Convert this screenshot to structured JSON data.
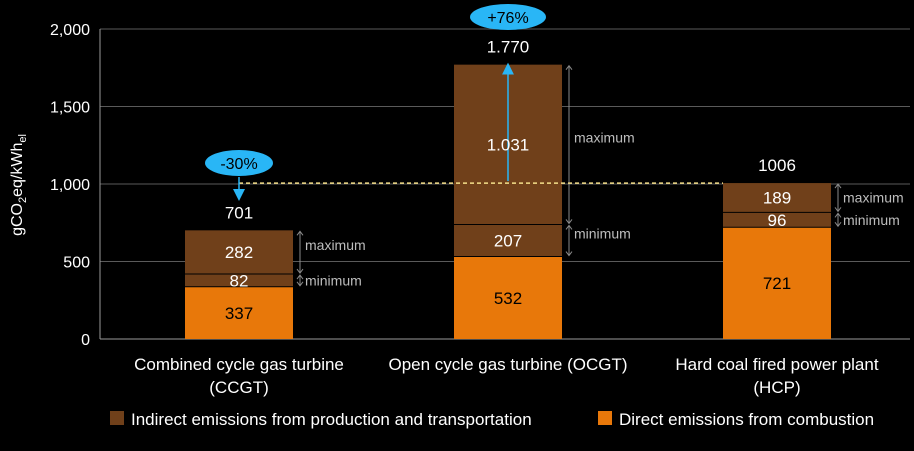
{
  "chart_data": {
    "type": "bar",
    "stacked": true,
    "ylabel_main": "gCO",
    "ylabel_sub": "2",
    "ylabel_mid": "eq/kWh",
    "ylabel_sub2": "el",
    "ylim": [
      0,
      2000
    ],
    "yticks": [
      "0",
      "500",
      "1,000",
      "1,500",
      "2,000"
    ],
    "ytick_values": [
      0,
      500,
      1000,
      1500,
      2000
    ],
    "categories": [
      [
        "Combined cycle gas turbine",
        "(CCGT)"
      ],
      [
        "Open cycle gas turbine (OCGT)",
        ""
      ],
      [
        "Hard coal fired power plant",
        "(HCP)"
      ]
    ],
    "series": [
      {
        "name": "Direct emissions from combustion",
        "color": "#e8780a",
        "values": [
          337,
          532,
          721
        ],
        "labels": [
          "337",
          "532",
          "721"
        ]
      },
      {
        "name": "Indirect emissions from production and transportation",
        "color": "#70401a",
        "values_min": [
          82,
          207,
          96
        ],
        "labels_min": [
          "82",
          "207",
          "96"
        ],
        "values_max": [
          282,
          1031,
          189
        ],
        "labels_max": [
          "282",
          "1.031",
          "189"
        ]
      }
    ],
    "totals": [
      701,
      1770,
      1006
    ],
    "total_labels": [
      "701",
      "1.770",
      "1006"
    ],
    "range_labels": {
      "max": "maximum",
      "min": "minimum"
    },
    "reference_line_value": 1006,
    "annotations": [
      {
        "text": "-30%",
        "category": 0,
        "color": "#29b6f6"
      },
      {
        "text": "+76%",
        "category": 1,
        "color": "#29b6f6"
      }
    ],
    "legend_position": "bottom",
    "grid": true
  }
}
